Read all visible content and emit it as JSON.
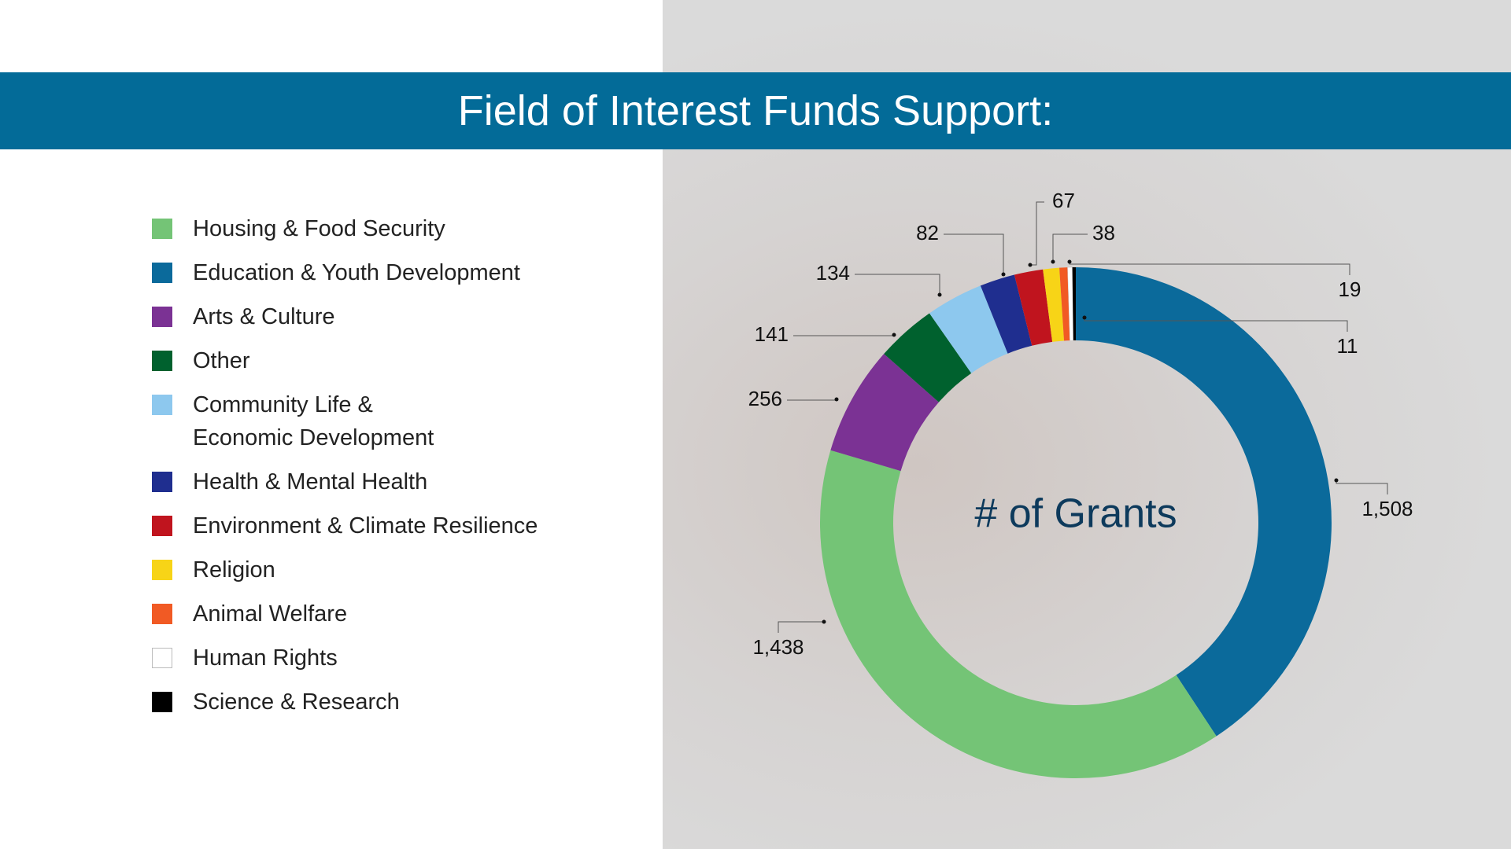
{
  "chart_data": {
    "type": "donut",
    "title": "Field of Interest Funds Support:",
    "center_label": "# of Grants",
    "categories": [
      "Housing & Food Security",
      "Education & Youth Development",
      "Arts & Culture",
      "Other",
      "Community Life &\nEconomic Development",
      "Health & Mental Health",
      "Environment & Climate Resilience",
      "Religion",
      "Animal Welfare",
      "Human Rights",
      "Science & Research"
    ],
    "values": [
      1438,
      1508,
      256,
      141,
      134,
      82,
      67,
      38,
      19,
      11,
      8
    ],
    "value_labels": [
      "1,438",
      "1,508",
      "256",
      "141",
      "134",
      "82",
      "67",
      "38",
      "19",
      "11",
      null
    ],
    "colors": [
      "#74c476",
      "#0b6a9b",
      "#7b3294",
      "#00612e",
      "#8dc8ee",
      "#1f2e8f",
      "#c0141e",
      "#f7d417",
      "#f15a24",
      "#ffffff",
      "#000000"
    ]
  }
}
